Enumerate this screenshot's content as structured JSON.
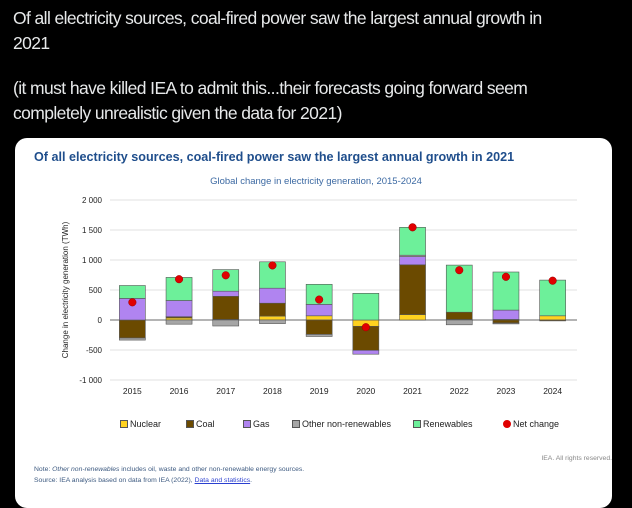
{
  "tweet": {
    "line1": "Of all electricity sources, coal-fired power saw the largest annual growth in",
    "line2": "2021",
    "line3": "(it must have killed IEA to admit this...their forecasts going forward seem",
    "line4": "completely unrealistic given the data for 2021)"
  },
  "chart_data": {
    "type": "bar",
    "stacked": true,
    "title": "Of all electricity sources, coal-fired power saw the largest annual growth in 2021",
    "subtitle": "Global change in electricity generation, 2015-2024",
    "xlabel": "",
    "ylabel": "Change in electricity generation (TWh)",
    "ylim": [
      -1000,
      2000
    ],
    "yticks": [
      2000,
      1500,
      1000,
      500,
      0,
      -500,
      -1000
    ],
    "ytick_labels": [
      "2 000",
      "1 500",
      "1 000",
      "500",
      "0",
      "-500",
      "-1 000"
    ],
    "grid": true,
    "legend_position": "bottom",
    "categories": [
      "2015",
      "2016",
      "2017",
      "2018",
      "2019",
      "2020",
      "2021",
      "2022",
      "2023",
      "2024"
    ],
    "series": [
      {
        "name": "Nuclear",
        "color": "#ffd21f",
        "values": [
          0,
          35,
          10,
          65,
          70,
          -105,
          90,
          10,
          10,
          70
        ]
      },
      {
        "name": "Coal",
        "color": "#6b4a00",
        "values": [
          -300,
          20,
          385,
          215,
          -240,
          -400,
          830,
          120,
          -50,
          -15
        ]
      },
      {
        "name": "Gas",
        "color": "#b084f0",
        "values": [
          360,
          270,
          85,
          250,
          190,
          -65,
          135,
          0,
          155,
          0
        ]
      },
      {
        "name": "Other non-renewables",
        "color": "#a6a6a6",
        "values": [
          -35,
          -70,
          -100,
          -60,
          -35,
          0,
          25,
          -80,
          -15,
          0
        ]
      },
      {
        "name": "Renewables",
        "color": "#6df09a",
        "values": [
          215,
          385,
          360,
          440,
          335,
          445,
          465,
          785,
          635,
          595
        ]
      }
    ],
    "net_change": {
      "name": "Net change",
      "color": "#e00000",
      "values": [
        295,
        680,
        745,
        910,
        340,
        -120,
        1545,
        830,
        720,
        655
      ]
    }
  },
  "footer": {
    "rights": "IEA. All rights reserved.",
    "note_prefix": "Note: ",
    "note_em": "Other non-renewables",
    "note_rest": " includes oil, waste and other non-renewable energy sources.",
    "source_prefix": "Source: IEA analysis based on data from IEA (2022), ",
    "source_link": "Data and statistics",
    "source_suffix": "."
  }
}
